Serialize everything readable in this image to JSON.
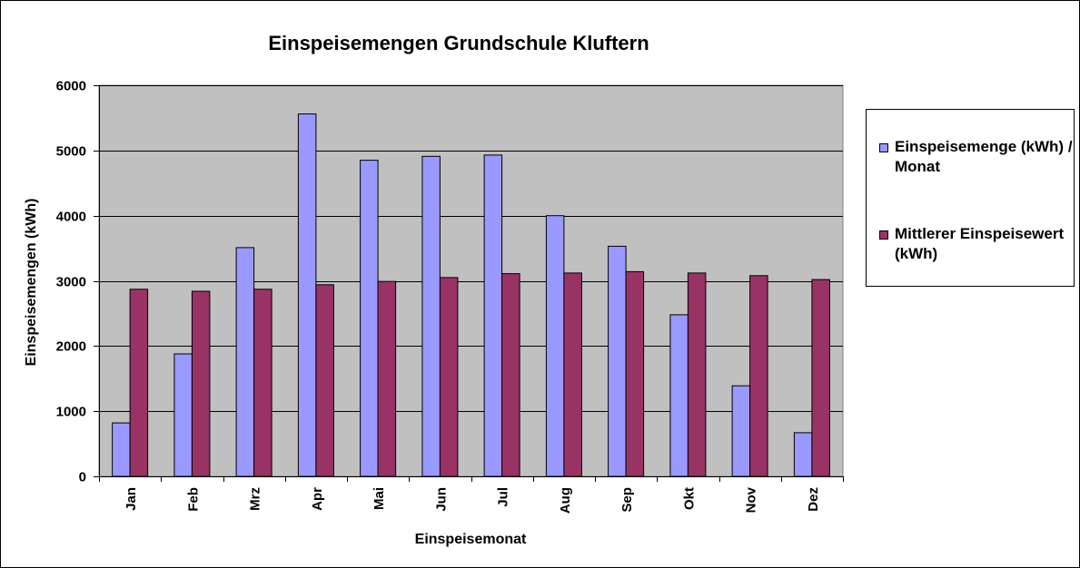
{
  "chart_data": {
    "type": "bar",
    "title": "Einspeisemengen Grundschule Kluftern",
    "xlabel": "Einspeisemonat",
    "ylabel": "Einspeisemengen (kWh)",
    "ylim": [
      0,
      6000
    ],
    "yticks": [
      0,
      1000,
      2000,
      3000,
      4000,
      5000,
      6000
    ],
    "grid": true,
    "legend_position": "right",
    "categories": [
      "Jan",
      "Feb",
      "Mrz",
      "Apr",
      "Mai",
      "Jun",
      "Jul",
      "Aug",
      "Sep",
      "Okt",
      "Nov",
      "Dez"
    ],
    "series": [
      {
        "name": "Einspeisemenge (kWh) / Monat",
        "color": "#9999ff",
        "values": [
          820,
          1880,
          3510,
          5560,
          4850,
          4910,
          4930,
          4000,
          3530,
          2480,
          1390,
          670
        ]
      },
      {
        "name": "Mittlerer Einspeisewert (kWh)",
        "color": "#993366",
        "values": [
          2870,
          2840,
          2870,
          2940,
          2990,
          3050,
          3110,
          3120,
          3140,
          3120,
          3080,
          3020
        ]
      }
    ],
    "plot_background": "#c0c0c0"
  }
}
